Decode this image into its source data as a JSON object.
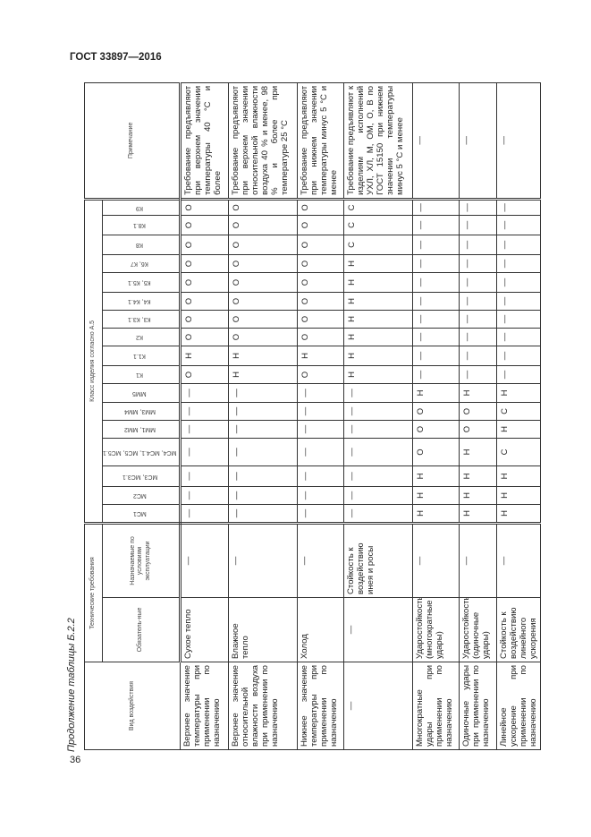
{
  "header": {
    "title": "ГОСТ 33897—2016"
  },
  "page_number": "36",
  "caption": "Продолжение таблицы Б.2.2",
  "table": {
    "head": {
      "impact_type": "Вид воздействия",
      "tech_requirements": "Технические требования",
      "mandatory": "Обязатель-ные",
      "assigned": "Назначаемые по условиям эксплуатации",
      "class_group": "Класс изделия согласно А.5",
      "note": "Примечание",
      "classes": [
        "МС1",
        "МС2",
        "МС3, МС3.1",
        "МС4, МС4.1, МС5, МС5.1",
        "ММ1, ММ2",
        "ММ3, ММ4",
        "ММ5",
        "К1",
        "К1.1",
        "К2",
        "К3, К3.1",
        "К4, К4.1",
        "К5, К5.1",
        "К6, К7",
        "К8",
        "К8.1",
        "К9"
      ]
    },
    "rows": [
      {
        "impact": "Верхнее значение температуры при применении по назначению",
        "mandatory": "Сухое тепло",
        "assigned": "—",
        "values": [
          "—",
          "—",
          "—",
          "—",
          "—",
          "—",
          "—",
          "О",
          "Н",
          "О",
          "О",
          "О",
          "О",
          "О",
          "О",
          "О",
          "О"
        ],
        "note": "Требование предъявляют при верхнем значении температуры 40 °С и более"
      },
      {
        "impact": "Верхнее значение относительной влажности воздуха при применении по назначению",
        "mandatory": "Влажное тепло",
        "assigned": "—",
        "values": [
          "—",
          "—",
          "—",
          "—",
          "—",
          "—",
          "—",
          "Н",
          "Н",
          "О",
          "О",
          "О",
          "О",
          "О",
          "О",
          "О",
          "О"
        ],
        "note": "Требование предъявляют при верхнем значении относительной влажности воздуха 40 % и менее, 98 % и более при температуре 25 °С"
      },
      {
        "impact": "Нижнее значение температуры при применении по назначению",
        "mandatory": "Холод",
        "assigned": "—",
        "values": [
          "—",
          "—",
          "—",
          "—",
          "—",
          "—",
          "—",
          "О",
          "Н",
          "О",
          "О",
          "О",
          "О",
          "О",
          "О",
          "О",
          "О"
        ],
        "note": "Требование предъявляют при нижнем значении температуры минус 5 °С и менее"
      },
      {
        "impact": "—",
        "mandatory": "—",
        "assigned": "Стойкость к воздействию инея и росы",
        "values": [
          "—",
          "—",
          "—",
          "—",
          "—",
          "—",
          "—",
          "Н",
          "Н",
          "Н",
          "Н",
          "Н",
          "Н",
          "Н",
          "С",
          "С",
          "С"
        ],
        "note": "Требование предъявляют к изделиям исполнений УХЛ, ХЛ, М, ОМ, О, В по ГОСТ 15150 при нижнем значении температуры минус 5 °С и менее"
      },
      {
        "impact": "Многократные удары при применении по назначению",
        "mandatory": "Ударостойкость (многократные удары)",
        "assigned": "—",
        "values": [
          "Н",
          "Н",
          "Н",
          "О",
          "О",
          "О",
          "Н",
          "—",
          "—",
          "—",
          "—",
          "—",
          "—",
          "—",
          "—",
          "—",
          "—"
        ],
        "note": "—"
      },
      {
        "impact": "Одиночные удары при применении по назначению",
        "mandatory": "Ударостойкость (одиночные удары)",
        "assigned": "—",
        "values": [
          "Н",
          "Н",
          "Н",
          "Н",
          "О",
          "О",
          "Н",
          "—",
          "—",
          "—",
          "—",
          "—",
          "—",
          "—",
          "—",
          "—",
          "—"
        ],
        "note": "—"
      },
      {
        "impact": "Линейное ускорение при применении по назначению",
        "mandatory": "Стойкость к воздействию линейного ускорения",
        "assigned": "—",
        "values": [
          "Н",
          "Н",
          "Н",
          "С",
          "Н",
          "С",
          "Н",
          "—",
          "—",
          "—",
          "—",
          "—",
          "—",
          "—",
          "—",
          "—",
          "—"
        ],
        "note": "—"
      }
    ]
  }
}
